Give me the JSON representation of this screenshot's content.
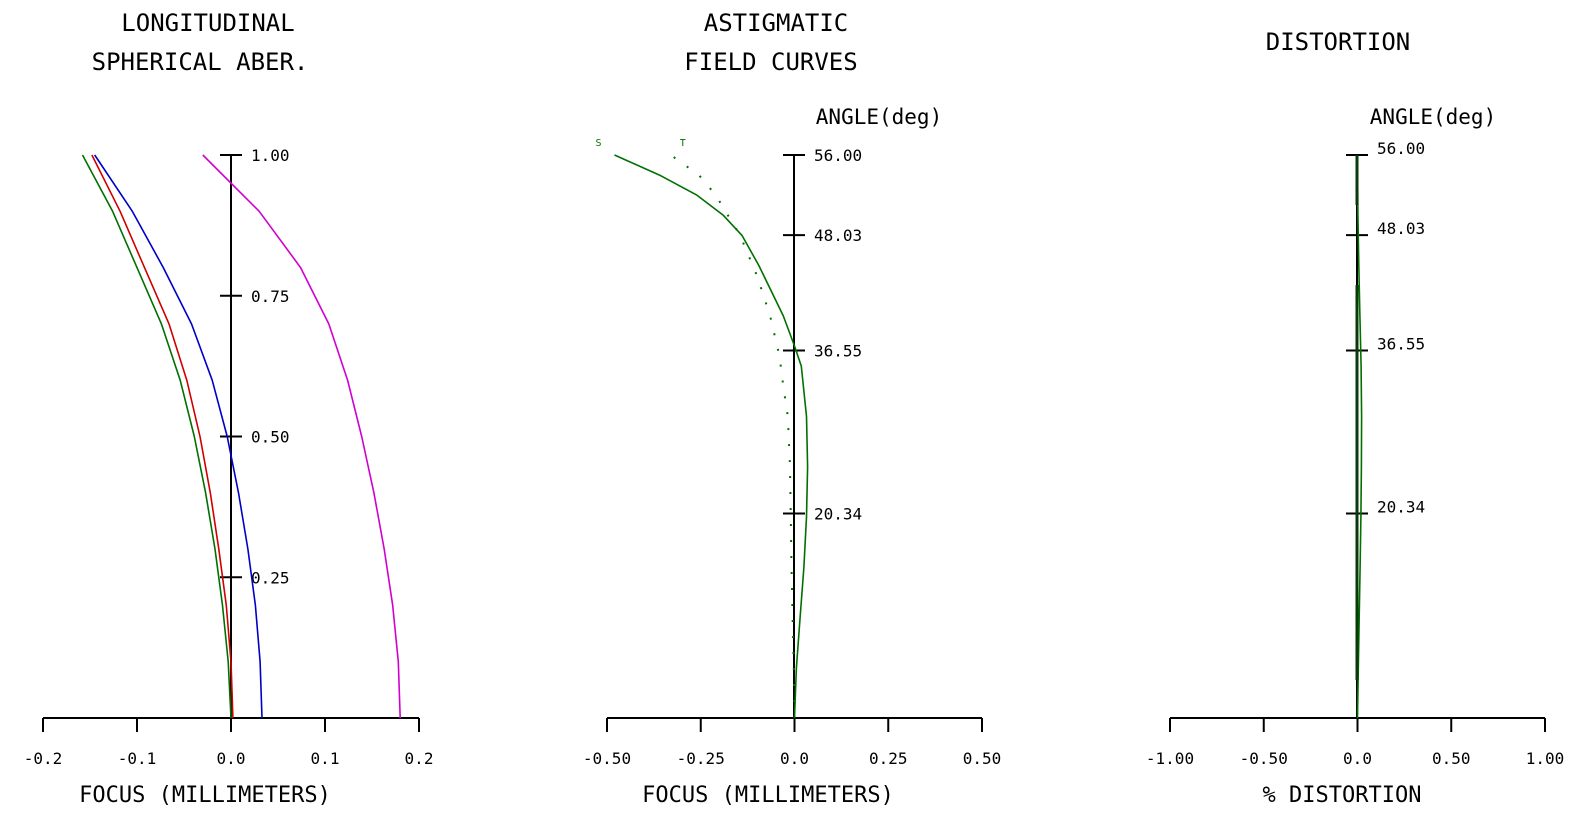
{
  "chart_data": [
    {
      "type": "line",
      "title_lines": [
        "LONGITUDINAL",
        "SPHERICAL ABER."
      ],
      "xlabel": "FOCUS (MILLIMETERS)",
      "ylabel": "",
      "xlim": [
        -0.2,
        0.2
      ],
      "ylim": [
        0,
        1
      ],
      "x_ticks": [
        -0.2,
        -0.1,
        0.0,
        0.1,
        0.2
      ],
      "x_tick_labels": [
        "-0.2",
        "-0.1",
        "0.0",
        "0.1",
        "0.2"
      ],
      "y_ticks": [
        0.25,
        0.5,
        0.75,
        1.0
      ],
      "y_tick_labels": [
        "0.25",
        "0.50",
        "0.75",
        "1.00"
      ],
      "series": [
        {
          "color": "#d000d0",
          "style": "solid",
          "y": [
            0,
            0.1,
            0.2,
            0.3,
            0.4,
            0.5,
            0.6,
            0.7,
            0.8,
            0.9,
            1.0
          ],
          "x": [
            0.18,
            0.178,
            0.172,
            0.163,
            0.152,
            0.139,
            0.124,
            0.104,
            0.074,
            0.03,
            -0.03
          ]
        },
        {
          "color": "#0000c8",
          "style": "solid",
          "y": [
            0,
            0.1,
            0.2,
            0.3,
            0.4,
            0.5,
            0.6,
            0.7,
            0.8,
            0.9,
            1.0
          ],
          "x": [
            0.033,
            0.031,
            0.026,
            0.018,
            0.008,
            -0.004,
            -0.02,
            -0.042,
            -0.072,
            -0.105,
            -0.145
          ]
        },
        {
          "color": "#d00000",
          "style": "solid",
          "y": [
            0,
            0.1,
            0.2,
            0.3,
            0.4,
            0.5,
            0.6,
            0.7,
            0.8,
            0.9,
            1.0
          ],
          "x": [
            0.002,
            0.0,
            -0.005,
            -0.013,
            -0.022,
            -0.033,
            -0.047,
            -0.066,
            -0.092,
            -0.118,
            -0.148
          ]
        },
        {
          "color": "#007000",
          "style": "solid",
          "y": [
            0,
            0.1,
            0.2,
            0.3,
            0.4,
            0.5,
            0.6,
            0.7,
            0.8,
            0.9,
            1.0
          ],
          "x": [
            0.0,
            -0.003,
            -0.009,
            -0.017,
            -0.027,
            -0.039,
            -0.054,
            -0.074,
            -0.1,
            -0.126,
            -0.158
          ]
        }
      ]
    },
    {
      "type": "line",
      "title_lines": [
        "ASTIGMATIC",
        "FIELD CURVES"
      ],
      "xlabel": "FOCUS (MILLIMETERS)",
      "ylabel": "ANGLE(deg)",
      "xlim": [
        -0.5,
        0.5
      ],
      "ylim": [
        0,
        56
      ],
      "x_ticks": [
        -0.5,
        -0.25,
        0.0,
        0.25,
        0.5
      ],
      "x_tick_labels": [
        "-0.50",
        "-0.25",
        "0.0",
        "0.25",
        "0.50"
      ],
      "y_ticks": [
        20.34,
        36.55,
        48.03,
        56.0
      ],
      "y_tick_labels": [
        "20.34",
        "36.55",
        "48.03",
        "56.00"
      ],
      "series": [
        {
          "name": "S",
          "color": "#007000",
          "style": "solid",
          "y": [
            0,
            5,
            10,
            15,
            20,
            25,
            30,
            35,
            37,
            40,
            45,
            48,
            50,
            52,
            54,
            56
          ],
          "x": [
            0.0,
            0.005,
            0.015,
            0.025,
            0.032,
            0.035,
            0.032,
            0.018,
            0.0,
            -0.03,
            -0.095,
            -0.14,
            -0.19,
            -0.26,
            -0.36,
            -0.48
          ]
        },
        {
          "name": "T",
          "color": "#007000",
          "style": "dotted",
          "y": [
            0,
            5,
            10,
            15,
            20,
            25,
            30,
            33,
            36,
            40,
            44,
            48,
            52,
            54,
            56
          ],
          "x": [
            0.0,
            -0.002,
            -0.005,
            -0.008,
            -0.01,
            -0.012,
            -0.018,
            -0.03,
            -0.04,
            -0.065,
            -0.1,
            -0.145,
            -0.21,
            -0.255,
            -0.33
          ]
        }
      ]
    },
    {
      "type": "line",
      "title_lines": [
        "DISTORTION"
      ],
      "xlabel": "% DISTORTION",
      "ylabel": "ANGLE(deg)",
      "xlim": [
        -1.0,
        1.0
      ],
      "ylim": [
        0,
        56
      ],
      "x_ticks": [
        -1.0,
        -0.5,
        0.0,
        0.5,
        1.0
      ],
      "x_tick_labels": [
        "-1.00",
        "-0.50",
        "0.0",
        "0.50",
        "1.00"
      ],
      "y_ticks": [
        20.34,
        36.55,
        48.03,
        56.0
      ],
      "y_tick_labels": [
        "20.34",
        "36.55",
        "48.03",
        "56.00"
      ],
      "series": [
        {
          "color": "#007000",
          "style": "solid",
          "y": [
            0,
            5,
            10,
            15,
            20,
            25,
            30,
            35,
            40,
            45,
            50,
            56
          ],
          "x": [
            0.0,
            0.004,
            0.009,
            0.014,
            0.018,
            0.021,
            0.022,
            0.019,
            0.013,
            0.007,
            0.002,
            0.0
          ]
        }
      ]
    }
  ]
}
